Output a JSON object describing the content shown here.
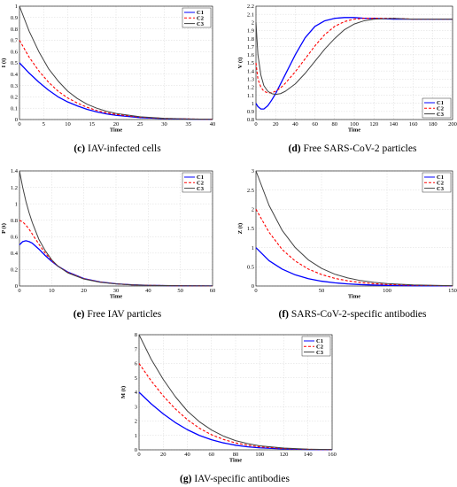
{
  "chart_data": [
    {
      "type": "line",
      "caption_letter": "(c)",
      "caption_text": "IAV-infected cells",
      "xlabel": "Time",
      "ylabel": "I (t)",
      "xlim": [
        0,
        40
      ],
      "ylim": [
        0,
        1
      ],
      "xticks": [
        "0",
        "5",
        "10",
        "15",
        "20",
        "25",
        "30",
        "35",
        "40"
      ],
      "yticks": [
        "0",
        "0.1",
        "0.2",
        "0.3",
        "0.4",
        "0.5",
        "0.6",
        "0.7",
        "0.8",
        "0.9",
        "1"
      ],
      "grid": true,
      "legend_position": "top-right",
      "series": [
        {
          "name": "C1",
          "color": "#0000ff",
          "style": "solid",
          "x": [
            0,
            2,
            4,
            6,
            8,
            10,
            12,
            14,
            16,
            18,
            20,
            25,
            30,
            35,
            40
          ],
          "y": [
            0.5,
            0.41,
            0.33,
            0.26,
            0.2,
            0.155,
            0.12,
            0.09,
            0.067,
            0.05,
            0.037,
            0.017,
            0.008,
            0.004,
            0.002
          ]
        },
        {
          "name": "C2",
          "color": "#ff0000",
          "style": "dashed",
          "x": [
            0,
            2,
            4,
            6,
            8,
            10,
            12,
            14,
            16,
            18,
            20,
            25,
            30,
            35,
            40
          ],
          "y": [
            0.7,
            0.55,
            0.43,
            0.33,
            0.25,
            0.19,
            0.145,
            0.108,
            0.08,
            0.06,
            0.045,
            0.021,
            0.01,
            0.005,
            0.002
          ]
        },
        {
          "name": "C3",
          "color": "#404040",
          "style": "solid",
          "x": [
            0,
            2,
            4,
            6,
            8,
            10,
            12,
            14,
            16,
            18,
            20,
            25,
            30,
            35,
            40
          ],
          "y": [
            1.0,
            0.78,
            0.6,
            0.45,
            0.34,
            0.25,
            0.185,
            0.135,
            0.1,
            0.073,
            0.054,
            0.024,
            0.011,
            0.005,
            0.002
          ]
        }
      ]
    },
    {
      "type": "line",
      "caption_letter": "(d)",
      "caption_text": "Free SARS-CoV-2 particles",
      "xlabel": "Time",
      "ylabel": "V (t)",
      "xlim": [
        0,
        200
      ],
      "ylim": [
        0.8,
        2.2
      ],
      "xticks": [
        "0",
        "20",
        "40",
        "60",
        "80",
        "100",
        "120",
        "140",
        "160",
        "180",
        "200"
      ],
      "yticks": [
        "0.8",
        "0.9",
        "1",
        "1.1",
        "1.2",
        "1.3",
        "1.4",
        "1.5",
        "1.6",
        "1.7",
        "1.8",
        "1.9",
        "2",
        "2.1",
        "2.2"
      ],
      "grid": true,
      "legend_position": "bottom-right",
      "series": [
        {
          "name": "C1",
          "color": "#0000ff",
          "style": "solid",
          "x": [
            0,
            2,
            5,
            8,
            12,
            16,
            20,
            25,
            30,
            40,
            50,
            60,
            70,
            80,
            90,
            100,
            110,
            120,
            140,
            160,
            180,
            200
          ],
          "y": [
            1.0,
            0.96,
            0.93,
            0.93,
            0.97,
            1.04,
            1.12,
            1.24,
            1.36,
            1.6,
            1.81,
            1.95,
            2.02,
            2.05,
            2.06,
            2.06,
            2.05,
            2.05,
            2.04,
            2.04,
            2.04,
            2.04
          ]
        },
        {
          "name": "C2",
          "color": "#ff0000",
          "style": "dashed",
          "x": [
            0,
            2,
            5,
            8,
            12,
            16,
            20,
            25,
            30,
            40,
            50,
            60,
            70,
            80,
            90,
            100,
            110,
            120,
            140,
            160,
            180,
            200
          ],
          "y": [
            1.5,
            1.3,
            1.2,
            1.15,
            1.13,
            1.13,
            1.15,
            1.19,
            1.25,
            1.39,
            1.55,
            1.71,
            1.85,
            1.95,
            2.01,
            2.04,
            2.05,
            2.05,
            2.05,
            2.04,
            2.04,
            2.04
          ]
        },
        {
          "name": "C3",
          "color": "#404040",
          "style": "solid",
          "x": [
            0,
            2,
            5,
            8,
            12,
            16,
            20,
            25,
            30,
            40,
            50,
            60,
            70,
            80,
            90,
            100,
            110,
            120,
            140,
            160,
            180,
            200
          ],
          "y": [
            2.0,
            1.6,
            1.35,
            1.22,
            1.15,
            1.12,
            1.11,
            1.12,
            1.15,
            1.24,
            1.37,
            1.52,
            1.67,
            1.8,
            1.91,
            1.98,
            2.02,
            2.04,
            2.05,
            2.04,
            2.04,
            2.04
          ]
        }
      ]
    },
    {
      "type": "line",
      "caption_letter": "(e)",
      "caption_text": "Free IAV particles",
      "xlabel": "Time",
      "ylabel": "P (t)",
      "xlim": [
        0,
        60
      ],
      "ylim": [
        0,
        1.4
      ],
      "xticks": [
        "0",
        "10",
        "20",
        "30",
        "40",
        "50",
        "60"
      ],
      "yticks": [
        "0",
        "0.2",
        "0.4",
        "0.6",
        "0.8",
        "1",
        "1.2",
        "1.4"
      ],
      "grid": true,
      "legend_position": "top-right",
      "series": [
        {
          "name": "C1",
          "color": "#0000ff",
          "style": "solid",
          "x": [
            0,
            1,
            2,
            3,
            4,
            6,
            8,
            10,
            12,
            15,
            20,
            25,
            30,
            35,
            40,
            50,
            60
          ],
          "y": [
            0.5,
            0.54,
            0.55,
            0.54,
            0.52,
            0.45,
            0.37,
            0.3,
            0.24,
            0.17,
            0.09,
            0.05,
            0.027,
            0.015,
            0.008,
            0.003,
            0.001
          ]
        },
        {
          "name": "C2",
          "color": "#ff0000",
          "style": "dashed",
          "x": [
            0,
            1,
            2,
            3,
            4,
            6,
            8,
            10,
            12,
            15,
            20,
            25,
            30,
            35,
            40,
            50,
            60
          ],
          "y": [
            0.8,
            0.78,
            0.74,
            0.69,
            0.63,
            0.51,
            0.4,
            0.31,
            0.24,
            0.165,
            0.088,
            0.048,
            0.026,
            0.014,
            0.008,
            0.003,
            0.001
          ]
        },
        {
          "name": "C3",
          "color": "#404040",
          "style": "solid",
          "x": [
            0,
            1,
            2,
            3,
            4,
            6,
            8,
            10,
            12,
            15,
            20,
            25,
            30,
            35,
            40,
            50,
            60
          ],
          "y": [
            1.4,
            1.2,
            1.03,
            0.89,
            0.77,
            0.57,
            0.43,
            0.32,
            0.24,
            0.16,
            0.085,
            0.046,
            0.025,
            0.014,
            0.008,
            0.003,
            0.001
          ]
        }
      ]
    },
    {
      "type": "line",
      "caption_letter": "(f)",
      "caption_text": "SARS-CoV-2-specific antibodies",
      "xlabel": "Time",
      "ylabel": "Z (t)",
      "xlim": [
        0,
        150
      ],
      "ylim": [
        0,
        3
      ],
      "xticks": [
        "0",
        "50",
        "100",
        "150"
      ],
      "yticks": [
        "0",
        "0.5",
        "1",
        "1.5",
        "2",
        "2.5",
        "3"
      ],
      "grid": true,
      "legend_position": "top-right",
      "series": [
        {
          "name": "C1",
          "color": "#0000ff",
          "style": "solid",
          "x": [
            0,
            10,
            20,
            30,
            40,
            50,
            60,
            70,
            80,
            90,
            100,
            120,
            150
          ],
          "y": [
            1.0,
            0.66,
            0.44,
            0.29,
            0.19,
            0.125,
            0.083,
            0.055,
            0.036,
            0.024,
            0.016,
            0.007,
            0.002
          ]
        },
        {
          "name": "C2",
          "color": "#ff0000",
          "style": "dashed",
          "x": [
            0,
            10,
            20,
            30,
            40,
            50,
            60,
            70,
            80,
            90,
            100,
            120,
            150
          ],
          "y": [
            2.0,
            1.4,
            0.95,
            0.65,
            0.44,
            0.3,
            0.2,
            0.135,
            0.09,
            0.06,
            0.04,
            0.018,
            0.005
          ]
        },
        {
          "name": "C3",
          "color": "#404040",
          "style": "solid",
          "x": [
            0,
            10,
            20,
            30,
            40,
            50,
            60,
            70,
            80,
            90,
            100,
            120,
            150
          ],
          "y": [
            3.0,
            2.1,
            1.45,
            1.0,
            0.68,
            0.46,
            0.31,
            0.21,
            0.14,
            0.094,
            0.063,
            0.028,
            0.008
          ]
        }
      ]
    },
    {
      "type": "line",
      "caption_letter": "(g)",
      "caption_text": "IAV-specific antibodies",
      "xlabel": "Time",
      "ylabel": "M (t)",
      "xlim": [
        0,
        160
      ],
      "ylim": [
        0,
        8
      ],
      "xticks": [
        "0",
        "20",
        "40",
        "60",
        "80",
        "100",
        "120",
        "140",
        "160"
      ],
      "yticks": [
        "0",
        "1",
        "2",
        "3",
        "4",
        "5",
        "6",
        "7",
        "8"
      ],
      "grid": true,
      "legend_position": "top-right",
      "series": [
        {
          "name": "C1",
          "color": "#0000ff",
          "style": "solid",
          "x": [
            0,
            10,
            20,
            30,
            40,
            50,
            60,
            70,
            80,
            90,
            100,
            120,
            140,
            160
          ],
          "y": [
            4.0,
            3.2,
            2.5,
            1.9,
            1.4,
            1.0,
            0.7,
            0.48,
            0.32,
            0.21,
            0.14,
            0.06,
            0.025,
            0.01
          ]
        },
        {
          "name": "C2",
          "color": "#ff0000",
          "style": "dashed",
          "x": [
            0,
            10,
            20,
            30,
            40,
            50,
            60,
            70,
            80,
            90,
            100,
            120,
            140,
            160
          ],
          "y": [
            6.0,
            4.8,
            3.75,
            2.85,
            2.1,
            1.5,
            1.05,
            0.72,
            0.48,
            0.32,
            0.21,
            0.09,
            0.035,
            0.013
          ]
        },
        {
          "name": "C3",
          "color": "#404040",
          "style": "solid",
          "x": [
            0,
            10,
            20,
            30,
            40,
            50,
            60,
            70,
            80,
            90,
            100,
            120,
            140,
            160
          ],
          "y": [
            8.0,
            6.3,
            4.9,
            3.7,
            2.7,
            1.95,
            1.38,
            0.95,
            0.64,
            0.43,
            0.28,
            0.12,
            0.045,
            0.016
          ]
        }
      ]
    }
  ]
}
